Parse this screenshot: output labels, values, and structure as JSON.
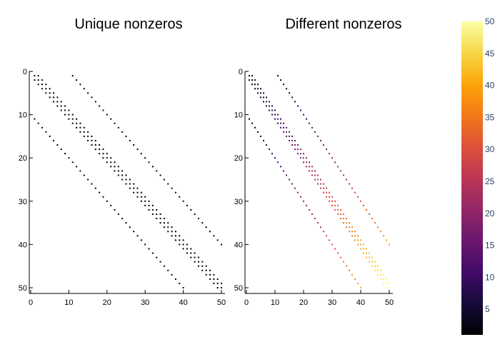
{
  "chart_data": [
    {
      "type": "scatter",
      "title": "Unique nonzeros",
      "matrix_size": [
        50,
        50
      ],
      "xlim": [
        0,
        50
      ],
      "ylim": [
        50,
        0
      ],
      "xticks": [
        "0",
        "10",
        "20",
        "30",
        "40",
        "50"
      ],
      "yticks": [
        "0",
        "10",
        "20",
        "30",
        "40",
        "50"
      ],
      "nonzero_diagonals": [
        -10,
        -1,
        0,
        1,
        10
      ],
      "marker_color": "#000000",
      "grid": false
    },
    {
      "type": "heatmap",
      "title": "Different nonzeros",
      "matrix_size": [
        50,
        50
      ],
      "xlim": [
        0,
        50
      ],
      "ylim": [
        50,
        0
      ],
      "xticks": [
        "0",
        "10",
        "20",
        "30",
        "40",
        "50"
      ],
      "yticks": [
        "0",
        "10",
        "20",
        "30",
        "40",
        "50"
      ],
      "nonzero_diagonals": [
        -10,
        -1,
        0,
        1,
        10
      ],
      "value_rule": "min(row, col)",
      "colorscale": "inferno",
      "colorbar": {
        "range": [
          1,
          50
        ],
        "ticks": [
          "5",
          "10",
          "15",
          "20",
          "25",
          "30",
          "35",
          "40",
          "45",
          "50"
        ]
      },
      "grid": false
    }
  ]
}
